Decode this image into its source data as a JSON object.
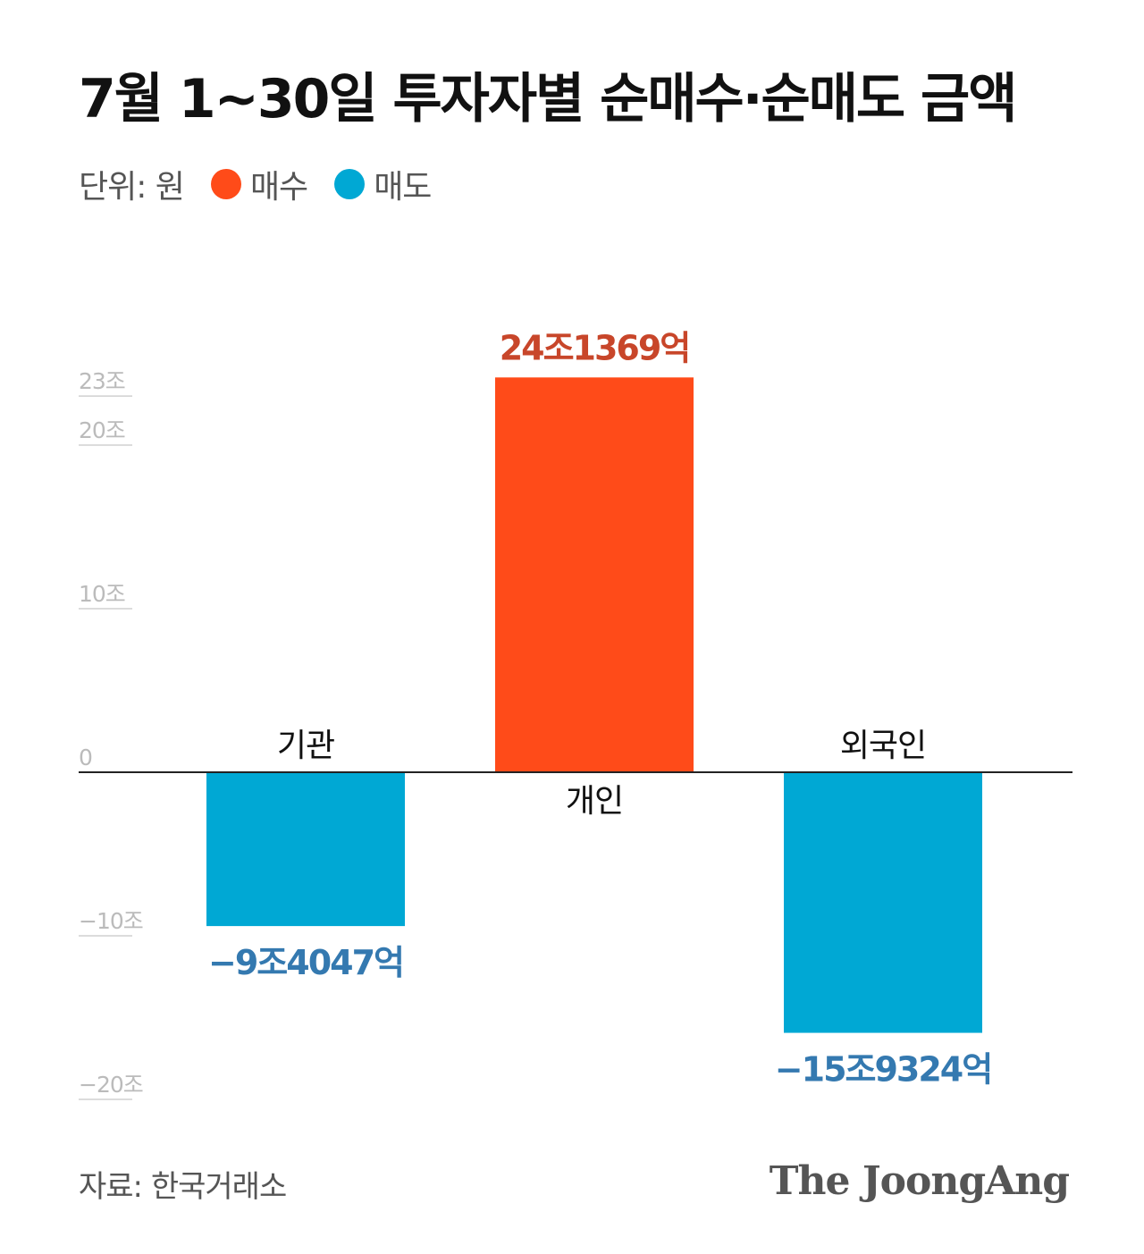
{
  "title": "7월 1~30일 투자자별 순매수·순매도 금액",
  "legend": {
    "unit": "단위: 원",
    "buy": {
      "label": "매수",
      "color": "#FF4B19"
    },
    "sell": {
      "label": "매도",
      "color": "#00A8D4"
    }
  },
  "chart_data": {
    "type": "bar",
    "categories": [
      "기관",
      "개인",
      "외국인"
    ],
    "values": [
      -9.4047,
      24.1369,
      -15.9324
    ],
    "value_labels": [
      "−9조4047억",
      "24조1369억",
      "−15조9324억"
    ],
    "unit": "조",
    "ylim": [
      -20,
      23
    ],
    "y_ticks": [
      {
        "value": 23,
        "label": "23조"
      },
      {
        "value": 20,
        "label": "20조"
      },
      {
        "value": 10,
        "label": "10조"
      },
      {
        "value": 0,
        "label": "0"
      },
      {
        "value": -10,
        "label": "−10조"
      },
      {
        "value": -20,
        "label": "−20조"
      }
    ],
    "colors": {
      "positive": "#FF4B19",
      "negative": "#00A8D4",
      "positive_label": "#C8462A",
      "negative_label": "#3479B0"
    },
    "grid": false
  },
  "footer": {
    "source": "자료: 한국거래소",
    "logo": "The JoongAng"
  }
}
